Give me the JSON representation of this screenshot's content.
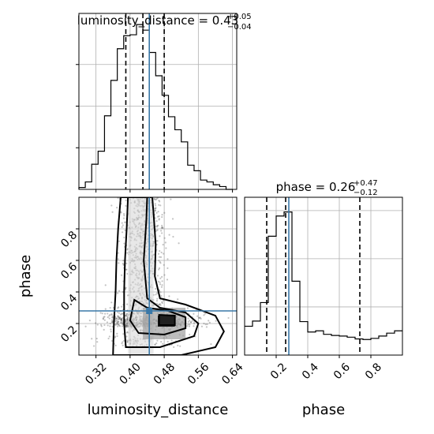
{
  "chart_data": [
    {
      "type": "histogram",
      "panel": "top-left",
      "variable": "luminosity_distance",
      "title_main": "luminosity_distance = 0.43",
      "title_sup": "+0.05",
      "title_sub": "−0.04",
      "xlim": [
        0.28,
        0.65
      ],
      "bin_edges": [
        0.28,
        0.295,
        0.31,
        0.325,
        0.34,
        0.355,
        0.37,
        0.385,
        0.4,
        0.415,
        0.43,
        0.445,
        0.46,
        0.475,
        0.49,
        0.505,
        0.52,
        0.535,
        0.55,
        0.565,
        0.58,
        0.595,
        0.61,
        0.625,
        0.64
      ],
      "counts": [
        2,
        8,
        27,
        41,
        79,
        117,
        151,
        165,
        166,
        177,
        171,
        147,
        122,
        101,
        78,
        64,
        51,
        26,
        20,
        10,
        8,
        5,
        3,
        0
      ],
      "quantiles": [
        0.39,
        0.43,
        0.48
      ],
      "truth": 0.445,
      "xticks": [
        "0.32",
        "0.40",
        "0.48",
        "0.56",
        "0.64"
      ],
      "xtick_values": [
        0.32,
        0.4,
        0.48,
        0.56,
        0.64
      ]
    },
    {
      "type": "scatter-contour",
      "panel": "bottom-left",
      "xlabel": "luminosity_distance",
      "ylabel": "phase",
      "xlim": [
        0.28,
        0.65
      ],
      "ylim": [
        0.0,
        1.0
      ],
      "xticks": [
        "0.32",
        "0.40",
        "0.48",
        "0.56",
        "0.64"
      ],
      "xtick_values": [
        0.32,
        0.4,
        0.48,
        0.56,
        0.64
      ],
      "yticks": [
        "0.2",
        "0.4",
        "0.6",
        "0.8"
      ],
      "ytick_values": [
        0.2,
        0.4,
        0.6,
        0.8
      ],
      "truth": [
        0.445,
        0.28
      ]
    },
    {
      "type": "histogram",
      "panel": "bottom-right",
      "variable": "phase",
      "title_main": "phase = 0.26",
      "title_sup": "+0.47",
      "title_sub": "−0.12",
      "xlabel": "phase",
      "xlim": [
        0.0,
        1.0
      ],
      "bin_edges": [
        0.0,
        0.05,
        0.1,
        0.15,
        0.2,
        0.25,
        0.3,
        0.35,
        0.4,
        0.45,
        0.5,
        0.55,
        0.6,
        0.65,
        0.7,
        0.75,
        0.8,
        0.85,
        0.9,
        0.95,
        1.0
      ],
      "counts": [
        50,
        59,
        91,
        206,
        241,
        248,
        128,
        58,
        40,
        42,
        36,
        34,
        33,
        31,
        28,
        27,
        29,
        33,
        38,
        42
      ],
      "quantiles": [
        0.14,
        0.26,
        0.73
      ],
      "truth": 0.28,
      "xticks": [
        "0.2",
        "0.4",
        "0.6",
        "0.8"
      ],
      "xtick_values": [
        0.2,
        0.4,
        0.6,
        0.8
      ]
    }
  ]
}
